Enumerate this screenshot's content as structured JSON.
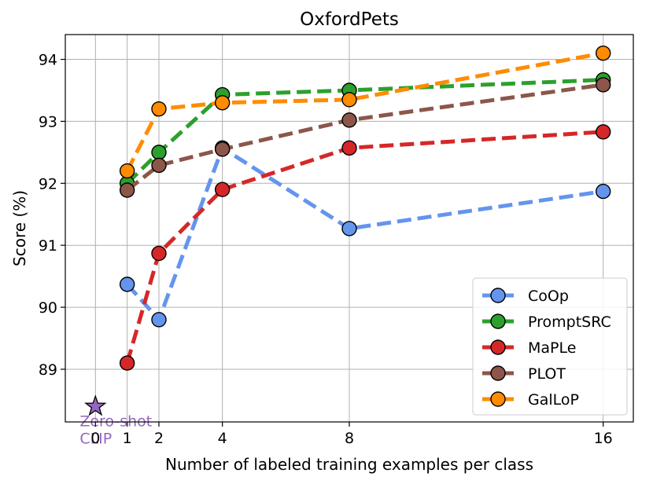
{
  "chart_data": {
    "type": "line",
    "title": "OxfordPets",
    "xlabel": "Number of labeled training examples per class",
    "ylabel": "Score (%)",
    "xlim": [
      -0.95,
      16.95
    ],
    "ylim": [
      88.15,
      94.4
    ],
    "xticks": [
      0,
      1,
      2,
      4,
      8,
      16
    ],
    "xtick_labels": [
      "0",
      "1",
      "2",
      "4",
      "8",
      "16"
    ],
    "yticks": [
      89,
      90,
      91,
      92,
      93,
      94
    ],
    "ytick_labels": [
      "89",
      "90",
      "91",
      "92",
      "93",
      "94"
    ],
    "grid": true,
    "legend_position": "lower-right",
    "x": [
      1,
      2,
      4,
      8,
      16
    ],
    "series": [
      {
        "name": "CoOp",
        "color": "#6495ED",
        "values": [
          90.37,
          89.8,
          92.57,
          91.27,
          91.87
        ]
      },
      {
        "name": "PromptSRC",
        "color": "#2CA02C",
        "values": [
          92.0,
          92.5,
          93.43,
          93.5,
          93.67
        ]
      },
      {
        "name": "MaPLe",
        "color": "#D62728",
        "values": [
          89.1,
          90.87,
          91.9,
          92.57,
          92.83
        ]
      },
      {
        "name": "PLOT",
        "color": "#8C564B",
        "values": [
          91.89,
          92.29,
          92.55,
          93.02,
          93.59
        ]
      },
      {
        "name": "GalLoP",
        "color": "#FF8C00",
        "values": [
          92.2,
          93.2,
          93.3,
          93.35,
          94.1
        ]
      }
    ],
    "zero_shot": {
      "label": "Zero-shot CLIP",
      "x": 0,
      "y": 88.4,
      "color": "#9467BD"
    }
  }
}
